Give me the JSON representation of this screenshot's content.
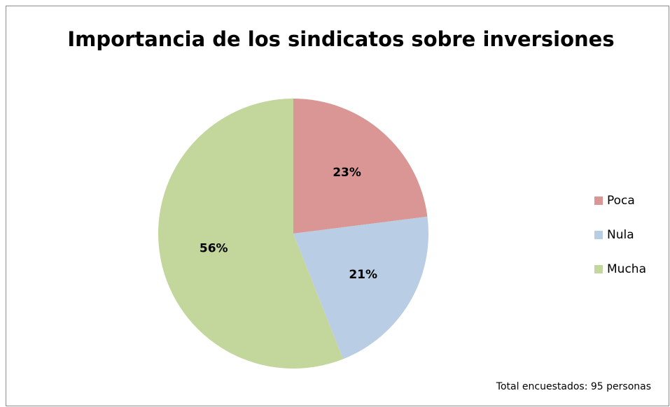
{
  "chart_data": {
    "type": "pie",
    "title": "Importancia de los sindicatos sobre inversiones",
    "categories": [
      "Poca",
      "Nula",
      "Mucha"
    ],
    "values": [
      23,
      21,
      56
    ],
    "value_labels": [
      "23%",
      "21%",
      "56%"
    ],
    "colors": [
      "#d99694",
      "#b9cde5",
      "#c3d69b"
    ],
    "legend": "right",
    "annotation": "Total encuestados: 95 personas"
  }
}
